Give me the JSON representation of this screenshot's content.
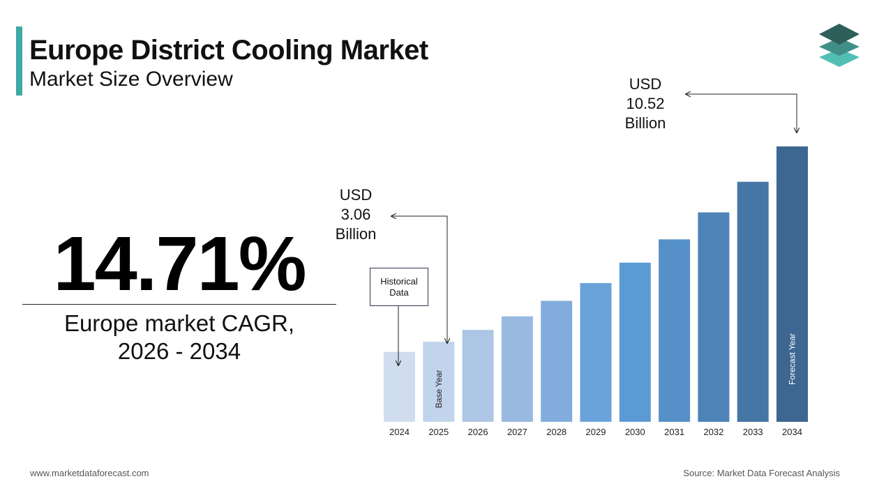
{
  "header": {
    "title": "Europe District Cooling Market",
    "subtitle": "Market Size Overview"
  },
  "logo": {
    "icon": "stacked-layers-logo-icon",
    "colors": [
      "#2f5f5a",
      "#3f8f88",
      "#52bfb5"
    ]
  },
  "kpi": {
    "value": "14.71%",
    "label": "Europe market CAGR,\n2026 - 2034"
  },
  "callouts": {
    "low": "USD\n3.06\nBillion",
    "high": "USD\n10.52\nBillion",
    "historical": "Historical\nData"
  },
  "chart_data": {
    "type": "bar",
    "categories": [
      "2024",
      "2025",
      "2026",
      "2027",
      "2028",
      "2029",
      "2030",
      "2031",
      "2032",
      "2033",
      "2034"
    ],
    "values": [
      2.67,
      3.06,
      3.51,
      4.03,
      4.62,
      5.3,
      6.08,
      6.97,
      8.0,
      9.17,
      10.52
    ],
    "unit": "USD Billion",
    "bar_annotations": [
      {
        "category": "2025",
        "text": "Base Year"
      },
      {
        "category": "2034",
        "text": "Forecast Year"
      }
    ],
    "colors": [
      "#d0ddef",
      "#c2d4eb",
      "#adc6e6",
      "#98b9e0",
      "#82acdd",
      "#6aa2da",
      "#5b9bd5",
      "#5590c8",
      "#4e83b7",
      "#4676a6",
      "#3d6690"
    ],
    "grid": false,
    "legend": "none"
  },
  "footer": {
    "website": "www.marketdataforecast.com",
    "source": "Source: Market Data Forecast Analysis"
  }
}
